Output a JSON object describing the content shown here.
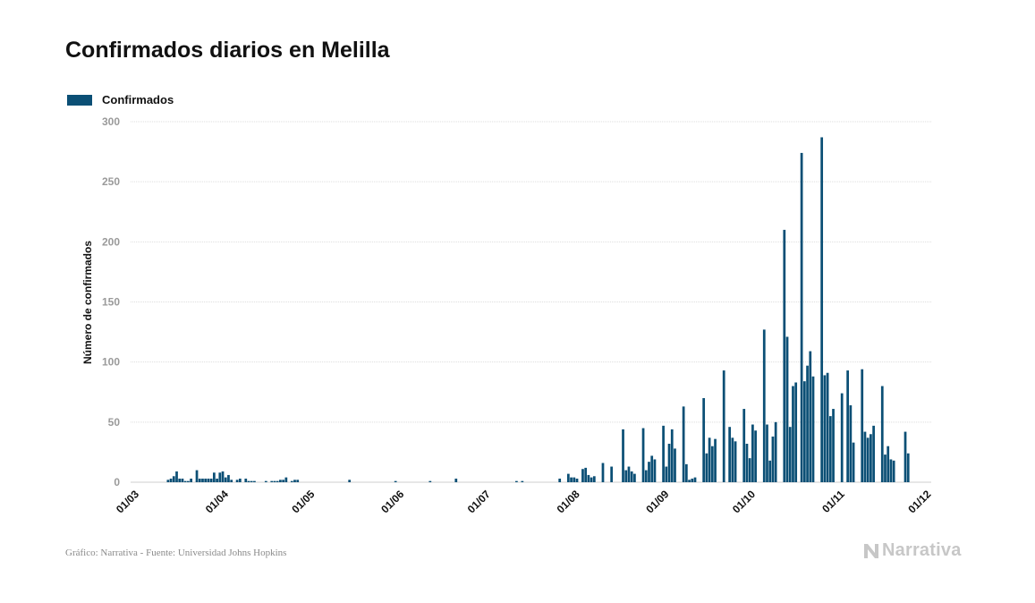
{
  "title": "Confirmados diarios en Melilla",
  "footer": {
    "source": "Gráfico: Narrativa - Fuente: Universidad Johns Hopkins",
    "brand": "Narrativa"
  },
  "colors": {
    "bar": "#0b4f75",
    "grid": "#dddddd",
    "axis_text": "#9a9a9a",
    "brand": "#c7c7c7"
  },
  "chart_data": {
    "type": "bar",
    "legend": [
      "Confirmados"
    ],
    "legend_position": "top-left",
    "ylabel": "Número de confirmados",
    "xlabel": "",
    "ylim": [
      0,
      300
    ],
    "yticks": [
      0,
      50,
      100,
      150,
      200,
      250,
      300
    ],
    "xlim": [
      "2020-03-01",
      "2020-12-04"
    ],
    "xticks": [
      {
        "date": "2020-03-01",
        "label": "01/03"
      },
      {
        "date": "2020-04-01",
        "label": "01/04"
      },
      {
        "date": "2020-05-01",
        "label": "01/05"
      },
      {
        "date": "2020-06-01",
        "label": "01/06"
      },
      {
        "date": "2020-07-01",
        "label": "01/07"
      },
      {
        "date": "2020-08-01",
        "label": "01/08"
      },
      {
        "date": "2020-09-01",
        "label": "01/09"
      },
      {
        "date": "2020-10-01",
        "label": "01/10"
      },
      {
        "date": "2020-11-01",
        "label": "01/11"
      },
      {
        "date": "2020-12-01",
        "label": "01/12"
      }
    ],
    "grid": true,
    "series": [
      {
        "name": "Confirmados",
        "points": [
          [
            "2020-03-14",
            2
          ],
          [
            "2020-03-15",
            3
          ],
          [
            "2020-03-16",
            5
          ],
          [
            "2020-03-17",
            9
          ],
          [
            "2020-03-18",
            3
          ],
          [
            "2020-03-19",
            3
          ],
          [
            "2020-03-20",
            1
          ],
          [
            "2020-03-21",
            1
          ],
          [
            "2020-03-22",
            3
          ],
          [
            "2020-03-24",
            10
          ],
          [
            "2020-03-25",
            3
          ],
          [
            "2020-03-26",
            3
          ],
          [
            "2020-03-27",
            3
          ],
          [
            "2020-03-28",
            3
          ],
          [
            "2020-03-29",
            3
          ],
          [
            "2020-03-30",
            8
          ],
          [
            "2020-03-31",
            3
          ],
          [
            "2020-04-01",
            8
          ],
          [
            "2020-04-02",
            9
          ],
          [
            "2020-04-03",
            4
          ],
          [
            "2020-04-04",
            6
          ],
          [
            "2020-04-05",
            2
          ],
          [
            "2020-04-07",
            2
          ],
          [
            "2020-04-08",
            3
          ],
          [
            "2020-04-10",
            3
          ],
          [
            "2020-04-11",
            1
          ],
          [
            "2020-04-12",
            1
          ],
          [
            "2020-04-13",
            1
          ],
          [
            "2020-04-17",
            1
          ],
          [
            "2020-04-19",
            1
          ],
          [
            "2020-04-20",
            1
          ],
          [
            "2020-04-21",
            1
          ],
          [
            "2020-04-22",
            2
          ],
          [
            "2020-04-23",
            2
          ],
          [
            "2020-04-24",
            4
          ],
          [
            "2020-04-26",
            1
          ],
          [
            "2020-04-27",
            2
          ],
          [
            "2020-04-28",
            2
          ],
          [
            "2020-05-16",
            2
          ],
          [
            "2020-06-01",
            1
          ],
          [
            "2020-06-13",
            1
          ],
          [
            "2020-06-22",
            3
          ],
          [
            "2020-07-13",
            1
          ],
          [
            "2020-07-15",
            1
          ],
          [
            "2020-07-28",
            3
          ],
          [
            "2020-07-31",
            7
          ],
          [
            "2020-08-01",
            4
          ],
          [
            "2020-08-02",
            4
          ],
          [
            "2020-08-03",
            3
          ],
          [
            "2020-08-05",
            11
          ],
          [
            "2020-08-06",
            12
          ],
          [
            "2020-08-07",
            6
          ],
          [
            "2020-08-08",
            4
          ],
          [
            "2020-08-09",
            5
          ],
          [
            "2020-08-12",
            16
          ],
          [
            "2020-08-15",
            13
          ],
          [
            "2020-08-19",
            44
          ],
          [
            "2020-08-20",
            10
          ],
          [
            "2020-08-21",
            13
          ],
          [
            "2020-08-22",
            9
          ],
          [
            "2020-08-23",
            7
          ],
          [
            "2020-08-26",
            45
          ],
          [
            "2020-08-27",
            10
          ],
          [
            "2020-08-28",
            17
          ],
          [
            "2020-08-29",
            22
          ],
          [
            "2020-08-30",
            19
          ],
          [
            "2020-09-02",
            47
          ],
          [
            "2020-09-03",
            13
          ],
          [
            "2020-09-04",
            32
          ],
          [
            "2020-09-05",
            44
          ],
          [
            "2020-09-06",
            28
          ],
          [
            "2020-09-09",
            63
          ],
          [
            "2020-09-10",
            15
          ],
          [
            "2020-09-11",
            2
          ],
          [
            "2020-09-12",
            3
          ],
          [
            "2020-09-13",
            4
          ],
          [
            "2020-09-16",
            70
          ],
          [
            "2020-09-17",
            24
          ],
          [
            "2020-09-18",
            37
          ],
          [
            "2020-09-19",
            30
          ],
          [
            "2020-09-20",
            36
          ],
          [
            "2020-09-23",
            93
          ],
          [
            "2020-09-25",
            46
          ],
          [
            "2020-09-26",
            37
          ],
          [
            "2020-09-27",
            34
          ],
          [
            "2020-09-30",
            61
          ],
          [
            "2020-10-01",
            32
          ],
          [
            "2020-10-02",
            20
          ],
          [
            "2020-10-03",
            48
          ],
          [
            "2020-10-04",
            43
          ],
          [
            "2020-10-07",
            127
          ],
          [
            "2020-10-08",
            48
          ],
          [
            "2020-10-09",
            18
          ],
          [
            "2020-10-10",
            38
          ],
          [
            "2020-10-11",
            50
          ],
          [
            "2020-10-14",
            210
          ],
          [
            "2020-10-15",
            121
          ],
          [
            "2020-10-16",
            46
          ],
          [
            "2020-10-17",
            80
          ],
          [
            "2020-10-18",
            83
          ],
          [
            "2020-10-20",
            274
          ],
          [
            "2020-10-21",
            84
          ],
          [
            "2020-10-22",
            97
          ],
          [
            "2020-10-23",
            109
          ],
          [
            "2020-10-24",
            88
          ],
          [
            "2020-10-27",
            287
          ],
          [
            "2020-10-28",
            89
          ],
          [
            "2020-10-29",
            91
          ],
          [
            "2020-10-30",
            55
          ],
          [
            "2020-10-31",
            61
          ],
          [
            "2020-11-03",
            74
          ],
          [
            "2020-11-05",
            93
          ],
          [
            "2020-11-06",
            64
          ],
          [
            "2020-11-07",
            33
          ],
          [
            "2020-11-10",
            94
          ],
          [
            "2020-11-11",
            42
          ],
          [
            "2020-11-12",
            37
          ],
          [
            "2020-11-13",
            40
          ],
          [
            "2020-11-14",
            47
          ],
          [
            "2020-11-17",
            80
          ],
          [
            "2020-11-18",
            23
          ],
          [
            "2020-11-19",
            30
          ],
          [
            "2020-11-20",
            19
          ],
          [
            "2020-11-21",
            18
          ],
          [
            "2020-11-25",
            42
          ],
          [
            "2020-11-26",
            24
          ]
        ]
      }
    ]
  }
}
